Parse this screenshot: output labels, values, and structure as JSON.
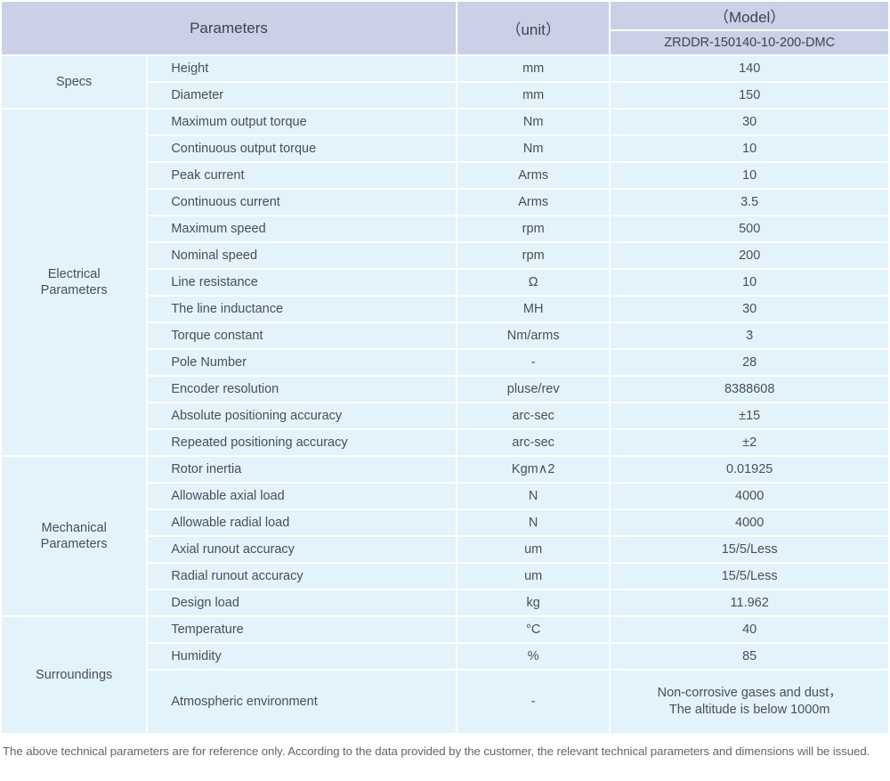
{
  "colors": {
    "header_bg": "#cad1e6",
    "cell_bg": "#e2f3fb",
    "header_text": "#3f434e",
    "cell_text": "#4b4f55",
    "note_text": "#666666",
    "page_bg": "#ffffff"
  },
  "table": {
    "header": {
      "parameters_label": "Parameters",
      "unit_label": "（unit）",
      "model_label": "（Model）",
      "model_value": "ZRDDR-150140-10-200-DMC"
    },
    "sections": [
      {
        "id": "specs",
        "name": "Specs",
        "rows": [
          {
            "name": "Height",
            "unit": "mm",
            "value": "140"
          },
          {
            "name": "Diameter",
            "unit": "mm",
            "value": "150"
          }
        ]
      },
      {
        "id": "electrical",
        "name": "Electrical\nParameters",
        "rows": [
          {
            "name": "Maximum output torque",
            "unit": "Nm",
            "value": "30"
          },
          {
            "name": "Continuous output torque",
            "unit": "Nm",
            "value": "10"
          },
          {
            "name": "Peak current",
            "unit": "Arms",
            "value": "10"
          },
          {
            "name": "Continuous current",
            "unit": "Arms",
            "value": "3.5"
          },
          {
            "name": "Maximum speed",
            "unit": "rpm",
            "value": "500"
          },
          {
            "name": "Nominal speed",
            "unit": "rpm",
            "value": "200"
          },
          {
            "name": "Line resistance",
            "unit": "Ω",
            "value": "10"
          },
          {
            "name": "The line inductance",
            "unit": "MH",
            "value": "30"
          },
          {
            "name": "Torque constant",
            "unit": "Nm/arms",
            "value": "3"
          },
          {
            "name": "Pole Number",
            "unit": "-",
            "value": "28"
          },
          {
            "name": "Encoder resolution",
            "unit": "pluse/rev",
            "value": "8388608"
          },
          {
            "name": "Absolute positioning accuracy",
            "unit": "arc-sec",
            "value": "±15"
          },
          {
            "name": "Repeated positioning accuracy",
            "unit": "arc-sec",
            "value": "±2"
          }
        ]
      },
      {
        "id": "mechanical",
        "name": "Mechanical\nParameters",
        "rows": [
          {
            "name": "Rotor inertia",
            "unit": "Kgm∧2",
            "value": "0.01925"
          },
          {
            "name": "Allowable axial load",
            "unit": "N",
            "value": "4000"
          },
          {
            "name": "Allowable radial load",
            "unit": "N",
            "value": "4000"
          },
          {
            "name": "Axial runout accuracy",
            "unit": "um",
            "value": "15/5/Less"
          },
          {
            "name": "Radial runout accuracy",
            "unit": "um",
            "value": "15/5/Less"
          },
          {
            "name": "Design load",
            "unit": "kg",
            "value": "11.962"
          }
        ]
      },
      {
        "id": "surroundings",
        "name": "Surroundings",
        "rows": [
          {
            "name": "Temperature",
            "unit": "°C",
            "value": "40"
          },
          {
            "name": "Humidity",
            "unit": "%",
            "value": "85"
          },
          {
            "name": "Atmospheric environment",
            "unit": "-",
            "value": "Non-corrosive gases and dust，\nThe altitude is below 1000m",
            "tall": true
          }
        ]
      }
    ],
    "footer_note": "The above technical parameters are for reference only. According to the data provided by the customer, the relevant technical parameters and dimensions will be issued."
  }
}
